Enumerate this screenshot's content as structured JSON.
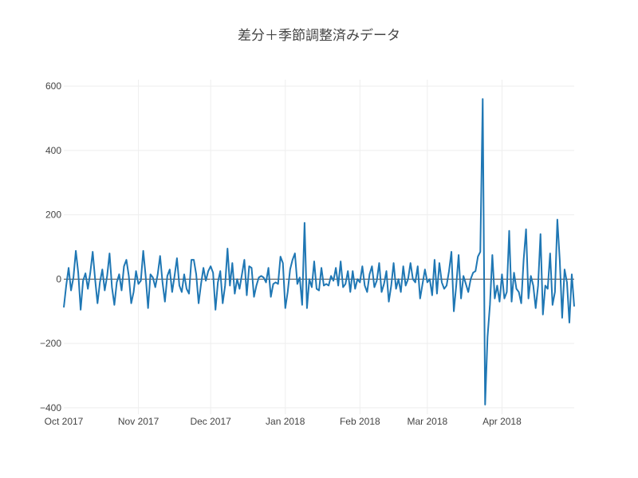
{
  "chart_data": {
    "type": "line",
    "title": "差分＋季節調整済みデータ",
    "xlabel": "",
    "ylabel": "",
    "x_range": [
      "2017-10-01",
      "2018-05-01"
    ],
    "ylim": [
      -420,
      620
    ],
    "y_ticks": [
      600,
      400,
      200,
      0,
      -200,
      -400
    ],
    "y_tick_labels": [
      "600",
      "400",
      "200",
      "0",
      "−200",
      "−400"
    ],
    "x_ticks": [
      "2017-10-01",
      "2017-11-01",
      "2017-12-01",
      "2018-01-01",
      "2018-02-01",
      "2018-03-01",
      "2018-04-01"
    ],
    "x_tick_labels": [
      "Oct 2017",
      "Nov 2017",
      "Dec 2017",
      "Jan 2018",
      "Feb 2018",
      "Mar 2018",
      "Apr 2018"
    ],
    "grid": true,
    "series": [
      {
        "color": "#1f77b4",
        "start_date": "2017-10-01",
        "values": [
          -88,
          -20,
          35,
          -35,
          5,
          88,
          20,
          -95,
          -5,
          18,
          -30,
          20,
          85,
          0,
          -75,
          -10,
          30,
          -35,
          10,
          80,
          -25,
          -80,
          -10,
          15,
          -35,
          40,
          60,
          10,
          -75,
          -40,
          25,
          -15,
          -5,
          88,
          10,
          -90,
          15,
          5,
          -25,
          15,
          72,
          -10,
          -70,
          10,
          30,
          -40,
          10,
          65,
          -20,
          -40,
          15,
          -30,
          -45,
          60,
          60,
          15,
          -75,
          -15,
          35,
          -5,
          25,
          40,
          20,
          -95,
          -10,
          25,
          -75,
          -20,
          95,
          -20,
          50,
          -45,
          0,
          -30,
          15,
          60,
          -50,
          40,
          35,
          -55,
          -20,
          5,
          10,
          5,
          -10,
          35,
          -55,
          -15,
          -10,
          -15,
          70,
          50,
          -90,
          -40,
          30,
          60,
          80,
          -15,
          5,
          -80,
          175,
          -90,
          0,
          -25,
          55,
          -30,
          -35,
          35,
          -20,
          -15,
          -20,
          10,
          -5,
          35,
          -20,
          55,
          -25,
          -15,
          25,
          -40,
          25,
          -30,
          0,
          -10,
          40,
          -20,
          -40,
          15,
          40,
          -25,
          -5,
          50,
          -40,
          -15,
          25,
          -70,
          -20,
          50,
          -30,
          0,
          -40,
          40,
          -20,
          0,
          50,
          0,
          -10,
          40,
          -60,
          -15,
          30,
          -10,
          0,
          -50,
          60,
          -45,
          50,
          -10,
          -30,
          -20,
          25,
          85,
          -100,
          -20,
          75,
          -60,
          10,
          -15,
          -40,
          0,
          20,
          25,
          70,
          85,
          560,
          -390,
          -180,
          -80,
          75,
          -60,
          -20,
          -70,
          15,
          -60,
          -40,
          150,
          -70,
          20,
          -30,
          -40,
          -75,
          60,
          155,
          -60,
          10,
          -20,
          -90,
          -20,
          140,
          -110,
          -20,
          -30,
          80,
          -80,
          -40,
          185,
          60,
          -120,
          30,
          -10,
          -135,
          15,
          -85
        ]
      }
    ]
  }
}
